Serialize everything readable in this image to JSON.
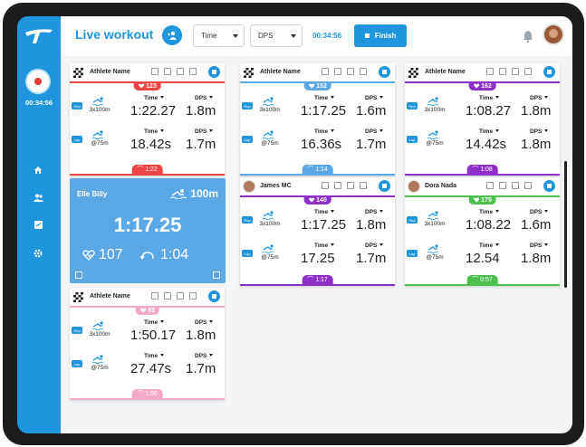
{
  "app": {
    "title": "Live workout",
    "timer": "00:34:56"
  },
  "toolbar": {
    "metric1": "Time",
    "metric2": "DPS",
    "time": "00:34:56",
    "finish_label": "Finish"
  },
  "labels": {
    "time": "Time",
    "dps": "DPS",
    "rep": "Rep",
    "lap": "Lap"
  },
  "cards": [
    {
      "name": "Athlete Name",
      "hr": "123",
      "color": "#ef4444",
      "rep_dist": "3x100m",
      "lap_dist": "@75m",
      "rep_time": "1:22.27",
      "rep_dps": "1.8m",
      "lap_time": "18.42s",
      "lap_dps": "1.7m",
      "rest": "1:22"
    },
    {
      "name": "Athlete Name",
      "hr": "152",
      "color": "#5aa8e6",
      "rep_dist": "3x100m",
      "lap_dist": "@75m",
      "rep_time": "1:17.25",
      "rep_dps": "1.6m",
      "lap_time": "16.36s",
      "lap_dps": "1.7m",
      "rest": "1:14"
    },
    {
      "name": "Athlete Name",
      "hr": "162",
      "color": "#8e2fc9",
      "rep_dist": "3x100m",
      "lap_dist": "@75m",
      "rep_time": "1:08.27",
      "rep_dps": "1.8m",
      "lap_time": "14.42s",
      "lap_dps": "1.8m",
      "rest": "1:08"
    },
    {
      "name": "James MC",
      "hr": "140",
      "color": "#8e2fc9",
      "rep_dist": "3x100m",
      "lap_dist": "@75m",
      "rep_time": "1:17.25",
      "rep_dps": "1.8m",
      "lap_time": "17.25",
      "lap_dps": "1.7m",
      "rest": "1:17"
    },
    {
      "name": "Dora Nada",
      "hr": "175",
      "color": "#4cc04c",
      "rep_dist": "3x100m",
      "lap_dist": "@75m",
      "rep_time": "1:08.22",
      "rep_dps": "1.6m",
      "lap_time": "12.54",
      "lap_dps": "1.8m",
      "rest": "0:57"
    },
    {
      "name": "Athlete Name",
      "hr": "93",
      "color": "#f5a9c8",
      "rep_dist": "3x100m",
      "lap_dist": "@75m",
      "rep_time": "1:50.17",
      "rep_dps": "1.8m",
      "lap_time": "27.47s",
      "lap_dps": "1.7m",
      "rest": "1:50"
    }
  ],
  "focus": {
    "name": "Elle Billy",
    "distance": "100m",
    "time": "1:17.25",
    "hr": "107",
    "rest": "1:04"
  }
}
